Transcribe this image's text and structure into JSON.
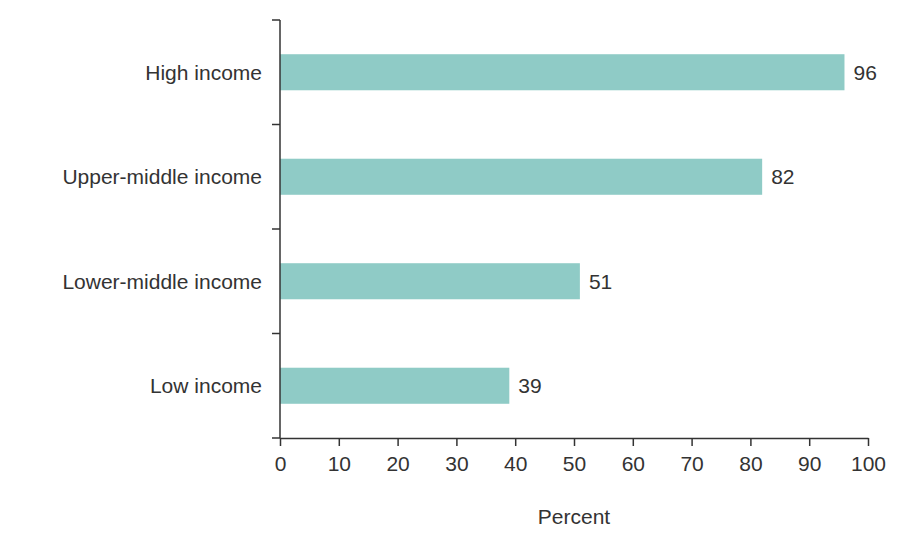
{
  "chart_data": {
    "type": "bar",
    "orientation": "horizontal",
    "categories": [
      "High income",
      "Upper-middle income",
      "Lower-middle income",
      "Low income"
    ],
    "values": [
      96,
      82,
      51,
      39
    ],
    "color": "#8fcbc6",
    "xlabel": "Percent",
    "xlim": [
      0,
      100
    ],
    "xticks": [
      0,
      10,
      20,
      30,
      40,
      50,
      60,
      70,
      80,
      90,
      100
    ],
    "data_labels": true,
    "grid": false
  }
}
